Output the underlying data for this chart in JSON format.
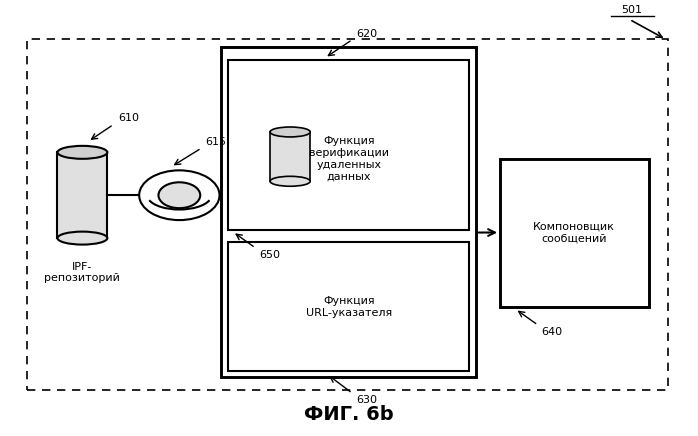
{
  "white": "#ffffff",
  "black": "#000000",
  "gray_light": "#e0e0e0",
  "gray_mid": "#d0d0d0",
  "title": "ФИГ. 6b",
  "title_fontsize": 14,
  "label_501": "501",
  "label_610": "610",
  "label_615": "615",
  "label_620": "620",
  "label_630": "630",
  "label_640": "640",
  "label_650": "650",
  "text_ipf": "IPF-\nрепозиторий",
  "text_620": "Функция\nверификации\nудаленных\nданных",
  "text_630": "Функция\nURL-указателя",
  "text_640": "Компоновщик\nсообщений"
}
